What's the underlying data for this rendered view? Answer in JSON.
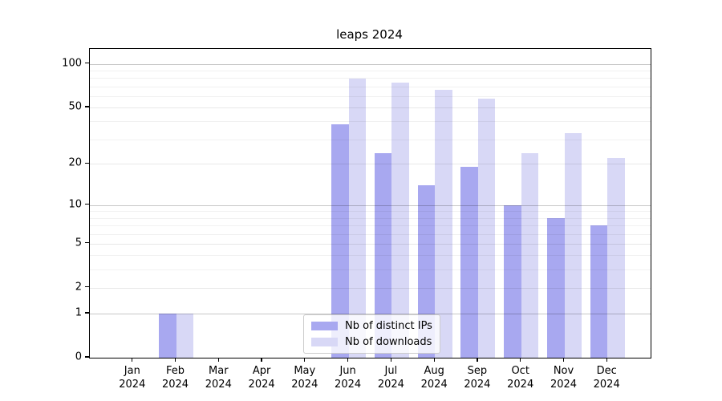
{
  "title": "leaps 2024",
  "chart_data": {
    "type": "bar",
    "title": "leaps 2024",
    "categories": [
      "Jan 2024",
      "Feb 2024",
      "Mar 2024",
      "Apr 2024",
      "May 2024",
      "Jun 2024",
      "Jul 2024",
      "Aug 2024",
      "Sep 2024",
      "Oct 2024",
      "Nov 2024",
      "Dec 2024"
    ],
    "series": [
      {
        "name": "Nb of distinct IPs",
        "key": "distinct-ips",
        "color": "#a8a8f0",
        "values": [
          0,
          1,
          0,
          0,
          0,
          38,
          24,
          14,
          19,
          10,
          8,
          7
        ]
      },
      {
        "name": "Nb of downloads",
        "key": "downloads",
        "color": "#d8d8f6",
        "values": [
          0,
          1,
          0,
          0,
          0,
          79,
          74,
          66,
          58,
          24,
          33,
          22
        ]
      }
    ],
    "yscale": "log1p",
    "yticks": [
      0,
      1,
      2,
      5,
      10,
      20,
      50,
      100
    ],
    "minor_gridlines": [
      3,
      4,
      6,
      7,
      8,
      9,
      30,
      40,
      60,
      70,
      80,
      90
    ],
    "power_gridlines": [
      1,
      10,
      100
    ],
    "ylim": [
      0,
      127
    ],
    "grid": true,
    "legend_position": "inside lower-center"
  },
  "legend": {
    "items": [
      {
        "label": "Nb of distinct IPs"
      },
      {
        "label": "Nb of downloads"
      }
    ]
  },
  "colors": {
    "bar_distinct_ips": "#a8a8f0",
    "bar_downloads": "#d8d8f6",
    "axis": "#000000",
    "legend_border": "#cccccc"
  }
}
